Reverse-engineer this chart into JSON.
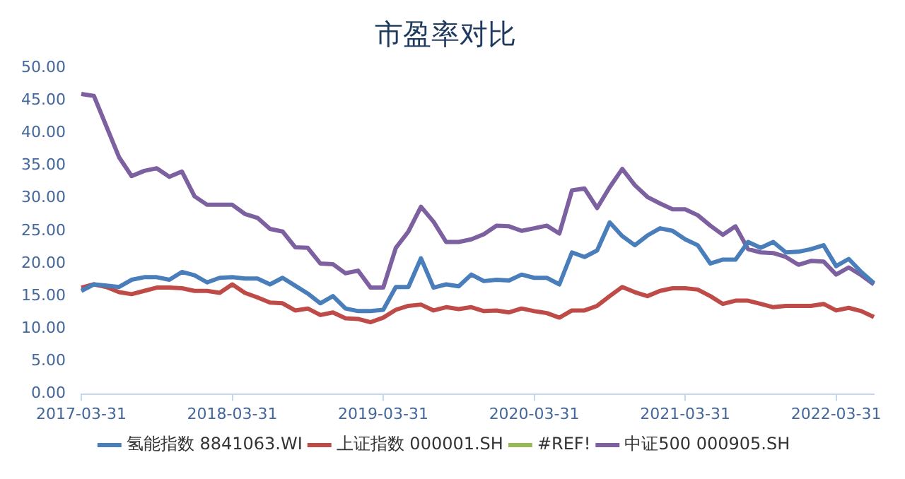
{
  "chart_data": {
    "type": "line",
    "title": "市盈率对比",
    "categories": [
      "2017-03-31",
      null,
      null,
      null,
      null,
      null,
      null,
      null,
      null,
      null,
      null,
      null,
      "2018-03-31",
      null,
      null,
      null,
      null,
      null,
      null,
      null,
      null,
      null,
      null,
      null,
      "2019-03-31",
      null,
      null,
      null,
      null,
      null,
      null,
      null,
      null,
      null,
      null,
      null,
      "2020-03-31",
      null,
      null,
      null,
      null,
      null,
      null,
      null,
      null,
      null,
      null,
      null,
      "2021-03-31",
      null,
      null,
      null,
      null,
      null,
      null,
      null,
      null,
      null,
      null,
      null,
      "2022-03-31",
      null,
      null,
      null
    ],
    "series": [
      {
        "name": "氢能指数 8841063.WI",
        "color": "#4a7ebb",
        "values": [
          15.8,
          16.8,
          16.6,
          16.4,
          17.5,
          17.9,
          17.9,
          17.5,
          18.7,
          18.2,
          17.1,
          17.8,
          17.9,
          17.7,
          17.7,
          16.8,
          17.8,
          16.6,
          15.4,
          13.9,
          15.0,
          13.1,
          12.7,
          12.7,
          12.9,
          16.4,
          16.4,
          20.8,
          16.3,
          16.8,
          16.5,
          18.3,
          17.3,
          17.5,
          17.4,
          18.3,
          17.8,
          17.8,
          16.8,
          21.7,
          21.0,
          22.0,
          26.3,
          24.2,
          22.8,
          24.3,
          25.4,
          25.0,
          23.7,
          22.8,
          20.0,
          20.6,
          20.6,
          23.3,
          22.4,
          23.3,
          21.7,
          21.8,
          22.2,
          22.8,
          19.6,
          20.7,
          18.7,
          17.0
        ]
      },
      {
        "name": "上证指数 000001.SH",
        "color": "#be4b48",
        "values": [
          16.3,
          16.8,
          16.4,
          15.6,
          15.3,
          15.8,
          16.3,
          16.3,
          16.2,
          15.8,
          15.8,
          15.5,
          16.8,
          15.5,
          14.8,
          14.0,
          13.9,
          12.8,
          13.1,
          12.1,
          12.5,
          11.6,
          11.5,
          11.0,
          11.7,
          12.9,
          13.5,
          13.7,
          12.8,
          13.3,
          13.0,
          13.3,
          12.7,
          12.8,
          12.5,
          13.1,
          12.7,
          12.4,
          11.7,
          12.8,
          12.8,
          13.5,
          15.0,
          16.4,
          15.6,
          15.0,
          15.8,
          16.2,
          16.2,
          16.0,
          15.0,
          13.8,
          14.3,
          14.3,
          13.8,
          13.3,
          13.5,
          13.5,
          13.5,
          13.8,
          12.8,
          13.2,
          12.7,
          11.8
        ]
      },
      {
        "name": "#REF!",
        "color": "#98b954",
        "values": [
          null,
          null,
          null,
          null,
          null,
          null,
          null,
          null,
          null,
          null,
          null,
          null,
          null,
          null,
          null,
          null,
          null,
          null,
          null,
          null,
          null,
          null,
          null,
          null,
          null,
          null,
          null,
          null,
          null,
          null,
          null,
          null,
          null,
          null,
          null,
          null,
          null,
          null,
          null,
          null,
          null,
          null,
          null,
          null,
          null,
          null,
          null,
          null,
          null,
          null,
          null,
          null,
          null,
          null,
          null,
          null,
          null,
          null,
          null,
          null,
          null,
          null,
          null,
          null
        ]
      },
      {
        "name": "中证500 000905.SH",
        "color": "#7d60a0",
        "values": [
          46.0,
          45.7,
          41.0,
          36.3,
          33.4,
          34.2,
          34.6,
          33.3,
          34.1,
          30.3,
          29.0,
          29.0,
          29.0,
          27.6,
          27.0,
          25.3,
          24.9,
          22.5,
          22.4,
          20.0,
          19.9,
          18.5,
          18.9,
          16.3,
          16.3,
          22.4,
          24.9,
          28.7,
          26.4,
          23.3,
          23.3,
          23.7,
          24.5,
          25.8,
          25.7,
          25.0,
          25.4,
          25.8,
          24.6,
          31.2,
          31.5,
          28.5,
          31.7,
          34.5,
          32.0,
          30.2,
          29.2,
          28.3,
          28.3,
          27.4,
          25.8,
          24.4,
          25.7,
          22.2,
          21.7,
          21.6,
          21.0,
          19.8,
          20.4,
          20.3,
          18.3,
          19.4,
          18.2,
          16.8
        ]
      }
    ],
    "ylim": [
      0,
      50
    ],
    "yticks": [
      {
        "value": 0,
        "label": "0.00"
      },
      {
        "value": 5,
        "label": "5.00"
      },
      {
        "value": 10,
        "label": "10.00"
      },
      {
        "value": 15,
        "label": "15.00"
      },
      {
        "value": 20,
        "label": "20.00"
      },
      {
        "value": 25,
        "label": "25.00"
      },
      {
        "value": 30,
        "label": "30.00"
      },
      {
        "value": 35,
        "label": "35.00"
      },
      {
        "value": 40,
        "label": "40.00"
      },
      {
        "value": 45,
        "label": "45.00"
      },
      {
        "value": 50,
        "label": "50.00"
      }
    ],
    "grid": false,
    "legend": "bottom",
    "marker": "none",
    "line_style": "solid"
  }
}
